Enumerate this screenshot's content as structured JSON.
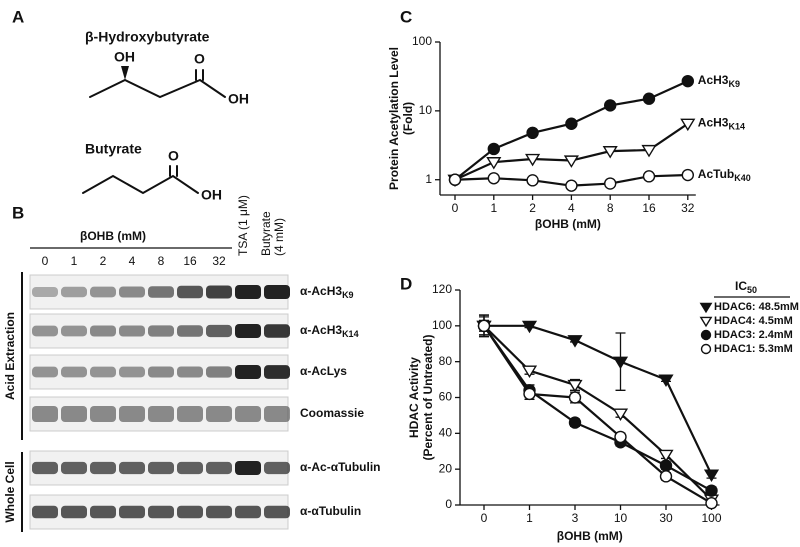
{
  "panel_labels": [
    "A",
    "B",
    "C",
    "D"
  ],
  "structures": [
    {
      "name": "β-Hydroxybutyrate",
      "atoms": [
        "OH",
        "O",
        "OH"
      ]
    },
    {
      "name": "Butyrate",
      "atoms": [
        "O",
        "OH"
      ]
    }
  ],
  "blot": {
    "treatment_label": "βOHB (mM)",
    "lanes": [
      0,
      1,
      2,
      4,
      8,
      16,
      32
    ],
    "extra_lanes": [
      [
        "TSA (1 μM)"
      ],
      [
        "Butyrate",
        "(4 mM)"
      ]
    ],
    "groups": [
      "Acid Extraction",
      "Whole Cell"
    ],
    "rows": [
      {
        "label": "α-AcH3",
        "sub": "K9"
      },
      {
        "label": "α-AcH3",
        "sub": "K14"
      },
      {
        "label": "α-AcLys"
      },
      {
        "label": "Coomassie"
      },
      {
        "label": "α-Ac-αTubulin"
      },
      {
        "label": "α-αTubulin"
      }
    ]
  },
  "chart_data": [
    {
      "type": "line",
      "categories": [
        0,
        1,
        2,
        4,
        8,
        16,
        32
      ],
      "xlabel": "βOHB (mM)",
      "ylabel": [
        "Protein Acetylation Level",
        "(Fold)"
      ],
      "yscale": "log",
      "ylim": [
        0.6,
        100
      ],
      "yticks": [
        1,
        10,
        100
      ],
      "series": [
        {
          "name": "AcH3",
          "subscript": "K9",
          "color": "#111",
          "marker": "circle",
          "fill": "filled",
          "values": [
            1,
            2.8,
            4.8,
            6.5,
            12,
            15,
            27
          ]
        },
        {
          "name": "AcH3",
          "subscript": "K14",
          "color": "#111",
          "marker": "triangle-down",
          "fill": "open",
          "values": [
            1,
            1.8,
            2.0,
            1.9,
            2.6,
            2.7,
            6.5
          ]
        },
        {
          "name": "AcTub",
          "subscript": "K40",
          "color": "#111",
          "marker": "circle",
          "fill": "open",
          "values": [
            1,
            1.05,
            0.98,
            0.82,
            0.88,
            1.12,
            1.17
          ]
        }
      ]
    },
    {
      "type": "line",
      "categories": [
        0,
        1,
        3,
        10,
        30,
        100
      ],
      "xlabel": "βOHB (mM)",
      "ylabel": [
        "HDAC Activity",
        "(Percent of Untreated)"
      ],
      "ylim": [
        0,
        120
      ],
      "yticks": [
        0,
        20,
        40,
        60,
        80,
        100,
        120
      ],
      "legend_title": "IC",
      "legend_title_sub": "50",
      "legend": "upper right",
      "series": [
        {
          "name": "HDAC6: 48.5mM",
          "color": "#111",
          "marker": "triangle-down",
          "fill": "filled",
          "values": [
            100,
            100,
            92,
            80,
            70,
            17
          ],
          "errors": [
            3,
            1,
            1,
            16,
            1,
            2
          ]
        },
        {
          "name": "HDAC4: 4.5mM",
          "color": "#111",
          "marker": "triangle-down",
          "fill": "open",
          "values": [
            100,
            75,
            67,
            51,
            28,
            3
          ],
          "errors": [
            6,
            2,
            3,
            2,
            2,
            2
          ]
        },
        {
          "name": "HDAC3: 2.4mM",
          "color": "#111",
          "marker": "circle",
          "fill": "filled",
          "values": [
            100,
            64,
            46,
            35,
            22,
            8
          ],
          "errors": [
            6,
            3,
            2,
            2,
            2,
            2
          ]
        },
        {
          "name": "HDAC1: 5.3mM",
          "color": "#111",
          "marker": "circle",
          "fill": "open",
          "values": [
            100,
            62,
            60,
            38,
            16,
            1
          ],
          "errors": [
            5,
            3,
            3,
            2,
            2,
            1
          ]
        }
      ]
    }
  ]
}
